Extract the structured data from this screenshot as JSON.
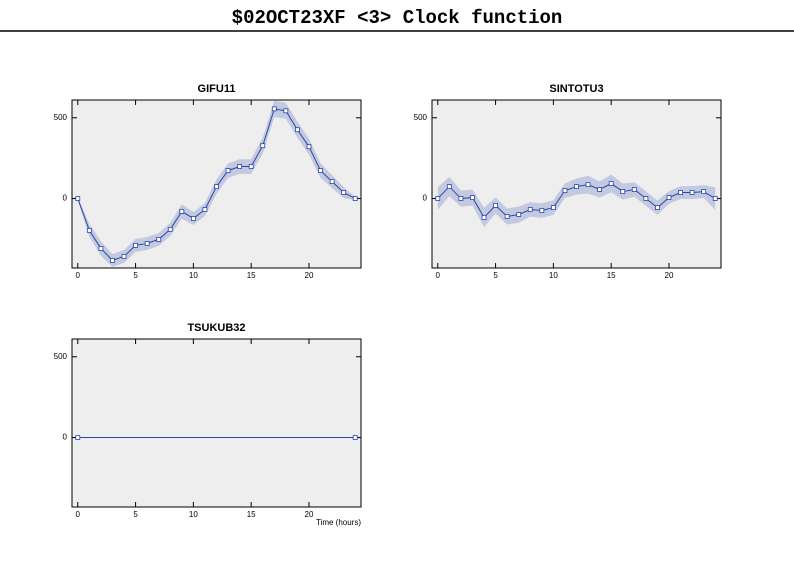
{
  "title": "$02OCT23XF <3>  Clock function",
  "chart_data": [
    {
      "type": "line",
      "title": "GIFU11",
      "x": [
        0,
        1,
        2,
        3,
        4,
        5,
        6,
        7,
        8,
        9,
        10,
        11,
        12,
        13,
        14,
        15,
        16,
        17,
        18,
        19,
        20,
        21,
        22,
        23,
        24
      ],
      "series": [
        {
          "color": "#2a46a6",
          "band_color": "#c3cadf",
          "values": [
            0,
            -197,
            -309,
            -383,
            -358,
            -290,
            -278,
            -253,
            -191,
            -80,
            -123,
            -68,
            74,
            173,
            198,
            198,
            327,
            555,
            543,
            426,
            321,
            173,
            105,
            37,
            0
          ],
          "errors": [
            10,
            40,
            45,
            40,
            40,
            40,
            40,
            40,
            40,
            45,
            40,
            40,
            45,
            45,
            45,
            45,
            50,
            50,
            50,
            50,
            50,
            45,
            40,
            35,
            10
          ]
        }
      ],
      "xlim": [
        -0.5,
        24.5
      ],
      "ylim": [
        -430,
        610
      ],
      "xticks": [
        0,
        5,
        10,
        15,
        20
      ],
      "yticks": [
        0,
        500
      ]
    },
    {
      "type": "line",
      "title": "SINTOTU3",
      "x": [
        0,
        1,
        2,
        3,
        4,
        5,
        6,
        7,
        8,
        9,
        10,
        11,
        12,
        13,
        14,
        15,
        16,
        17,
        18,
        19,
        20,
        21,
        22,
        23,
        24
      ],
      "series": [
        {
          "color": "#2a46a6",
          "band_color": "#c3cadf",
          "values": [
            0,
            74,
            0,
            6,
            -117,
            -43,
            -111,
            -99,
            -68,
            -74,
            -56,
            49,
            74,
            86,
            56,
            93,
            43,
            56,
            0,
            -56,
            6,
            37,
            37,
            43,
            0
          ],
          "errors": [
            70,
            60,
            50,
            50,
            60,
            50,
            50,
            50,
            45,
            45,
            45,
            45,
            50,
            55,
            50,
            55,
            50,
            45,
            45,
            45,
            40,
            40,
            40,
            40,
            70
          ]
        }
      ],
      "xlim": [
        -0.5,
        24.5
      ],
      "ylim": [
        -430,
        610
      ],
      "xticks": [
        0,
        5,
        10,
        15,
        20
      ],
      "yticks": [
        0,
        500
      ]
    },
    {
      "type": "line",
      "title": "TSUKUB32",
      "xlabel": "Time (hours)",
      "x": [
        0,
        24
      ],
      "series": [
        {
          "color": "#2a46a6",
          "values": [
            0,
            0
          ]
        }
      ],
      "xlim": [
        -0.5,
        24.5
      ],
      "ylim": [
        -430,
        610
      ],
      "xticks": [
        0,
        5,
        10,
        15,
        20
      ],
      "yticks": [
        0,
        500
      ]
    }
  ]
}
